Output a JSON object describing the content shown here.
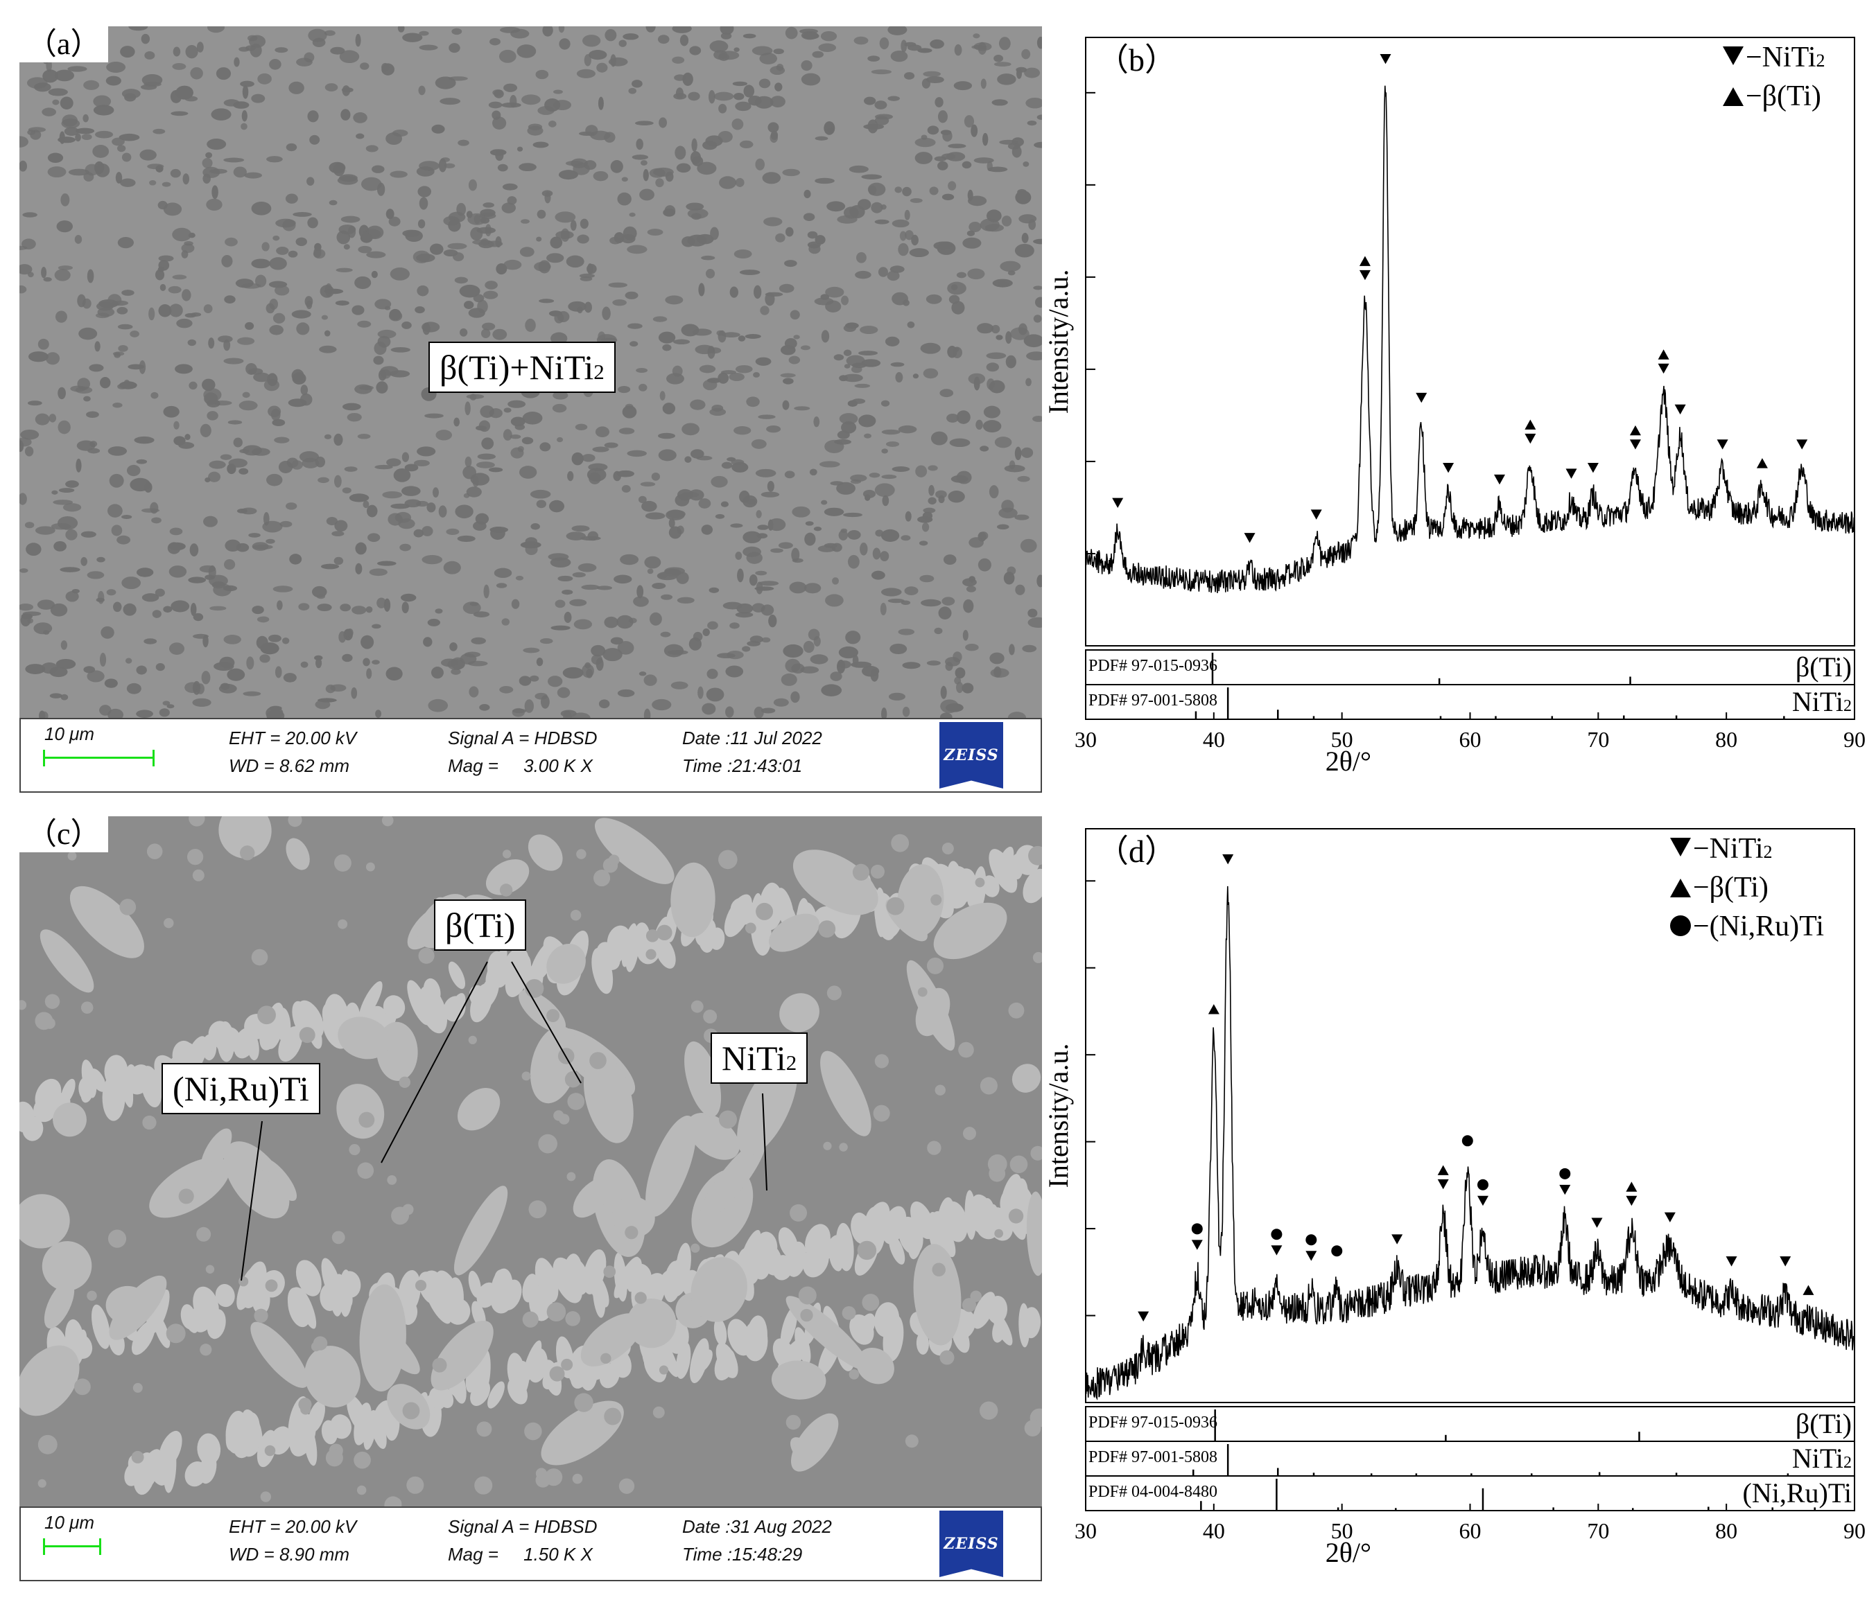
{
  "panels": {
    "a": {
      "label": "（a）",
      "callout": "β(Ti)+NiTi",
      "callout_sub": "2",
      "info": {
        "scale": "10 μm",
        "eht": "EHT = 20.00 kV",
        "wd": "WD = 8.62 mm",
        "signal": "Signal A = HDBSD",
        "mag": "Mag =     3.00 K X",
        "date": "Date :11 Jul 2022",
        "time": "Time :21:43:01",
        "logo": "ZEISS"
      }
    },
    "c": {
      "label": "（c）",
      "callouts": {
        "beta": "β(Ti)",
        "niruti": "(Ni,Ru)Ti",
        "niti2": "NiTi",
        "niti2_sub": "2"
      },
      "info": {
        "scale": "10 μm",
        "eht": "EHT = 20.00 kV",
        "wd": "WD = 8.90 mm",
        "signal": "Signal A = HDBSD",
        "mag": "Mag =     1.50 K X",
        "date": "Date :31 Aug 2022",
        "time": "Time :15:48:29",
        "logo": "ZEISS"
      }
    }
  },
  "chart_data": [
    {
      "panel": "(b)",
      "panel_label": "（b）",
      "type": "line",
      "xlabel": "2θ/°",
      "ylabel": "Intensity/a.u.",
      "xlim": [
        30,
        90
      ],
      "xticks": [
        30,
        40,
        50,
        60,
        70,
        80,
        90
      ],
      "legend": [
        {
          "marker": "down-triangle",
          "label": "−NiTi",
          "sub": "2"
        },
        {
          "marker": "up-triangle",
          "label": "−β(Ti)",
          "sub": ""
        }
      ],
      "legend_position": "top-right",
      "baseline": [
        [
          30,
          0.15
        ],
        [
          35,
          0.12
        ],
        [
          40,
          0.11
        ],
        [
          45,
          0.115
        ],
        [
          50,
          0.16
        ],
        [
          55,
          0.2
        ],
        [
          60,
          0.2
        ],
        [
          65,
          0.21
        ],
        [
          70,
          0.22
        ],
        [
          75,
          0.24
        ],
        [
          80,
          0.23
        ],
        [
          85,
          0.22
        ],
        [
          90,
          0.21
        ]
      ],
      "peaks": [
        {
          "x": 32.5,
          "y": 0.2,
          "w": 0.3
        },
        {
          "x": 42.8,
          "y": 0.14,
          "w": 0.2
        },
        {
          "x": 48.0,
          "y": 0.18,
          "w": 0.3
        },
        {
          "x": 51.8,
          "y": 0.59,
          "w": 0.4
        },
        {
          "x": 53.4,
          "y": 0.96,
          "w": 0.3
        },
        {
          "x": 56.2,
          "y": 0.38,
          "w": 0.3
        },
        {
          "x": 58.3,
          "y": 0.26,
          "w": 0.3
        },
        {
          "x": 62.3,
          "y": 0.24,
          "w": 0.3
        },
        {
          "x": 64.7,
          "y": 0.31,
          "w": 0.4
        },
        {
          "x": 67.9,
          "y": 0.25,
          "w": 0.3
        },
        {
          "x": 69.6,
          "y": 0.26,
          "w": 0.3
        },
        {
          "x": 72.9,
          "y": 0.3,
          "w": 0.4
        },
        {
          "x": 75.1,
          "y": 0.43,
          "w": 0.5
        },
        {
          "x": 76.4,
          "y": 0.36,
          "w": 0.4
        },
        {
          "x": 79.7,
          "y": 0.3,
          "w": 0.5
        },
        {
          "x": 82.8,
          "y": 0.27,
          "w": 0.4
        },
        {
          "x": 85.9,
          "y": 0.3,
          "w": 0.5
        }
      ],
      "noise": 0.02,
      "markers": [
        {
          "x": 32.5,
          "type": "down"
        },
        {
          "x": 42.8,
          "type": "down"
        },
        {
          "x": 48.0,
          "type": "down"
        },
        {
          "x": 51.8,
          "type": "updown"
        },
        {
          "x": 53.4,
          "type": "down"
        },
        {
          "x": 56.2,
          "type": "down"
        },
        {
          "x": 58.3,
          "type": "down"
        },
        {
          "x": 62.3,
          "type": "down"
        },
        {
          "x": 64.7,
          "type": "updown"
        },
        {
          "x": 67.9,
          "type": "down"
        },
        {
          "x": 69.6,
          "type": "down"
        },
        {
          "x": 72.9,
          "type": "updown"
        },
        {
          "x": 75.1,
          "type": "updown"
        },
        {
          "x": 76.4,
          "type": "down"
        },
        {
          "x": 79.7,
          "type": "down"
        },
        {
          "x": 82.8,
          "type": "up"
        },
        {
          "x": 85.9,
          "type": "down"
        }
      ],
      "references": [
        {
          "pdf": "PDF# 97-015-0936",
          "phase": "β(Ti)",
          "phase_sub": "",
          "lines": [
            [
              39.9,
              1.0
            ],
            [
              57.6,
              0.2
            ],
            [
              72.5,
              0.25
            ]
          ]
        },
        {
          "pdf": "PDF# 97-001-5808",
          "phase": "NiTi",
          "phase_sub": "2",
          "lines": [
            [
              38.6,
              0.25
            ],
            [
              41.1,
              1.0
            ],
            [
              45.0,
              0.3
            ],
            [
              47.8,
              0.1
            ],
            [
              57.7,
              0.1
            ],
            [
              62.0,
              0.1
            ],
            [
              66.4,
              0.1
            ],
            [
              72.0,
              0.12
            ],
            [
              76.1,
              0.12
            ],
            [
              84.5,
              0.1
            ]
          ]
        }
      ]
    },
    {
      "panel": "(d)",
      "panel_label": "（d）",
      "type": "line",
      "xlabel": "2θ/°",
      "ylabel": "Intensity/a.u.",
      "xlim": [
        30,
        90
      ],
      "xticks": [
        30,
        40,
        50,
        60,
        70,
        80,
        90
      ],
      "legend": [
        {
          "marker": "down-triangle",
          "label": "−NiTi",
          "sub": "2"
        },
        {
          "marker": "up-triangle",
          "label": "−β(Ti)",
          "sub": ""
        },
        {
          "marker": "circle",
          "label": "−(Ni,Ru)Ti",
          "sub": ""
        }
      ],
      "legend_position": "top-right",
      "baseline": [
        [
          30,
          0.03
        ],
        [
          33,
          0.05
        ],
        [
          36,
          0.09
        ],
        [
          38,
          0.13
        ],
        [
          40,
          0.16
        ],
        [
          43,
          0.18
        ],
        [
          46,
          0.17
        ],
        [
          50,
          0.17
        ],
        [
          55,
          0.2
        ],
        [
          60,
          0.22
        ],
        [
          65,
          0.24
        ],
        [
          70,
          0.22
        ],
        [
          75,
          0.22
        ],
        [
          80,
          0.18
        ],
        [
          85,
          0.16
        ],
        [
          90,
          0.12
        ]
      ],
      "peaks": [
        {
          "x": 34.5,
          "y": 0.1,
          "w": 0.3
        },
        {
          "x": 38.7,
          "y": 0.23,
          "w": 0.3
        },
        {
          "x": 40.0,
          "y": 0.66,
          "w": 0.35
        },
        {
          "x": 41.1,
          "y": 0.93,
          "w": 0.35
        },
        {
          "x": 44.9,
          "y": 0.22,
          "w": 0.3
        },
        {
          "x": 47.6,
          "y": 0.21,
          "w": 0.25
        },
        {
          "x": 49.6,
          "y": 0.22,
          "w": 0.2
        },
        {
          "x": 54.3,
          "y": 0.24,
          "w": 0.4
        },
        {
          "x": 57.9,
          "y": 0.34,
          "w": 0.35
        },
        {
          "x": 59.8,
          "y": 0.42,
          "w": 0.35
        },
        {
          "x": 61.0,
          "y": 0.31,
          "w": 0.35
        },
        {
          "x": 67.4,
          "y": 0.33,
          "w": 0.35
        },
        {
          "x": 69.9,
          "y": 0.27,
          "w": 0.4
        },
        {
          "x": 72.6,
          "y": 0.31,
          "w": 0.5
        },
        {
          "x": 75.6,
          "y": 0.28,
          "w": 0.8
        },
        {
          "x": 80.4,
          "y": 0.2,
          "w": 0.4
        },
        {
          "x": 84.6,
          "y": 0.2,
          "w": 0.3
        },
        {
          "x": 86.4,
          "y": 0.15,
          "w": 0.3
        }
      ],
      "noise": 0.03,
      "markers": [
        {
          "x": 34.5,
          "type": "down"
        },
        {
          "x": 38.7,
          "type": "circledown"
        },
        {
          "x": 40.0,
          "type": "up"
        },
        {
          "x": 41.1,
          "type": "down"
        },
        {
          "x": 44.9,
          "type": "circledown"
        },
        {
          "x": 47.6,
          "type": "circledown"
        },
        {
          "x": 49.6,
          "type": "circle"
        },
        {
          "x": 54.3,
          "type": "down"
        },
        {
          "x": 57.9,
          "type": "updown"
        },
        {
          "x": 59.8,
          "type": "circle"
        },
        {
          "x": 61.0,
          "type": "circledown"
        },
        {
          "x": 67.4,
          "type": "circledown"
        },
        {
          "x": 69.9,
          "type": "down"
        },
        {
          "x": 72.6,
          "type": "updown"
        },
        {
          "x": 75.6,
          "type": "down"
        },
        {
          "x": 80.4,
          "type": "down"
        },
        {
          "x": 84.6,
          "type": "down"
        },
        {
          "x": 86.4,
          "type": "up"
        }
      ],
      "references": [
        {
          "pdf": "PDF# 97-015-0936",
          "phase": "β(Ti)",
          "phase_sub": "",
          "lines": [
            [
              40.1,
              1.0
            ],
            [
              58.1,
              0.2
            ],
            [
              73.2,
              0.3
            ]
          ]
        },
        {
          "pdf": "PDF# 97-001-5808",
          "phase": "NiTi",
          "phase_sub": "2",
          "lines": [
            [
              38.4,
              0.2
            ],
            [
              41.1,
              1.0
            ],
            [
              45.0,
              0.25
            ],
            [
              47.8,
              0.1
            ],
            [
              52.3,
              0.08
            ],
            [
              55.8,
              0.08
            ],
            [
              60.1,
              0.08
            ],
            [
              64.8,
              0.08
            ],
            [
              70.1,
              0.12
            ],
            [
              76.1,
              0.1
            ],
            [
              84.8,
              0.08
            ]
          ]
        },
        {
          "pdf": "PDF# 04-004-8480",
          "phase": "(Ni,Ru)Ti",
          "phase_sub": "",
          "lines": [
            [
              39.0,
              0.3
            ],
            [
              44.9,
              1.0
            ],
            [
              49.7,
              0.1
            ],
            [
              54.2,
              0.08
            ],
            [
              61.0,
              0.7
            ],
            [
              66.5,
              0.1
            ],
            [
              72.7,
              0.08
            ],
            [
              78.6,
              0.12
            ],
            [
              83.6,
              0.1
            ],
            [
              86.9,
              0.1
            ]
          ]
        }
      ]
    }
  ]
}
